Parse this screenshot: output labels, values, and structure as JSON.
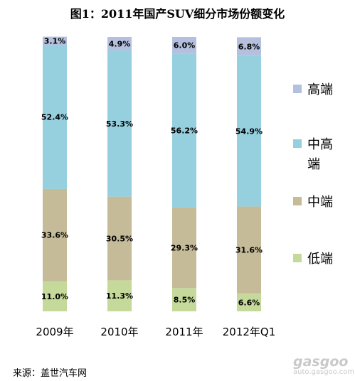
{
  "title": "图1：2011年国产SUV细分市场份额变化",
  "source": "来源：盖世汽车网",
  "watermark": {
    "logo": "gasgoo",
    "url": "auto.gasgoo.com"
  },
  "colors": {
    "高端": "#b4c0de",
    "中高端": "#96cfde",
    "中端": "#c5bb98",
    "低端": "#c4d99a"
  },
  "chart_data": {
    "type": "bar",
    "stacked": true,
    "categories": [
      "2009年",
      "2010年",
      "2011年",
      "2012年Q1"
    ],
    "series": [
      {
        "name": "低端",
        "values": [
          11.0,
          11.3,
          8.5,
          6.6
        ],
        "labels": [
          "11.0%",
          "11.3%",
          "8.5%",
          "6.6%"
        ]
      },
      {
        "name": "中端",
        "values": [
          33.6,
          30.5,
          29.3,
          31.6
        ],
        "labels": [
          "33.6%",
          "30.5%",
          "29.3%",
          "31.6%"
        ]
      },
      {
        "name": "中高端",
        "values": [
          52.4,
          53.3,
          56.2,
          54.9
        ],
        "labels": [
          "52.4%",
          "53.3%",
          "56.2%",
          "54.9%"
        ]
      },
      {
        "name": "高端",
        "values": [
          3.1,
          4.9,
          6.0,
          6.8
        ],
        "labels": [
          "3.1%",
          "4.9%",
          "6.0%",
          "6.8%"
        ]
      }
    ],
    "legend": [
      {
        "name": "高端",
        "lines": [
          "高端"
        ]
      },
      {
        "name": "中高端",
        "lines": [
          "中高",
          "端"
        ]
      },
      {
        "name": "中端",
        "lines": [
          "中端"
        ]
      },
      {
        "name": "低端",
        "lines": [
          "低端"
        ]
      }
    ],
    "ylim": [
      0,
      100
    ],
    "grid": false,
    "legend_position": "right"
  }
}
